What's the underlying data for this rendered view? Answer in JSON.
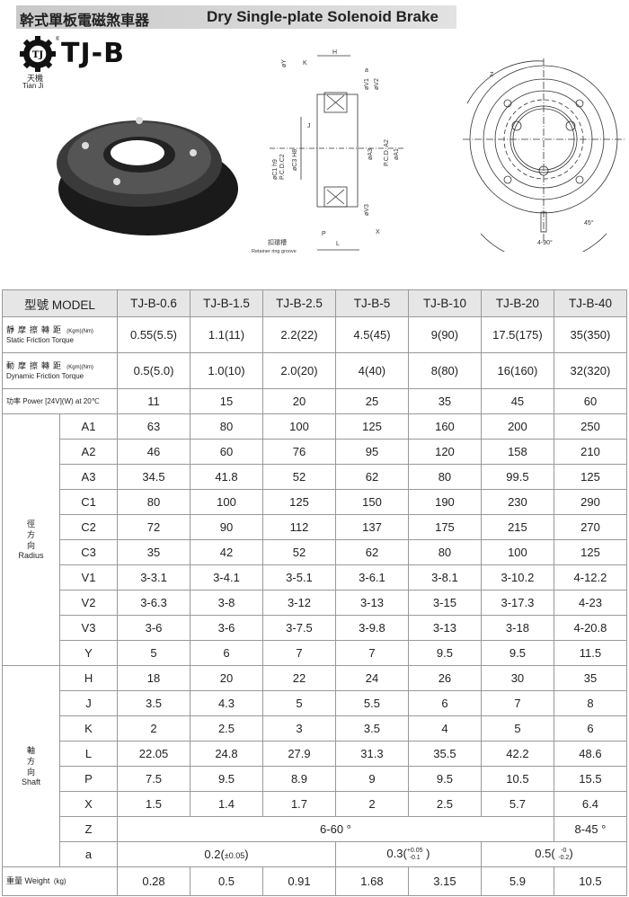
{
  "header": {
    "title_zh": "幹式單板電磁煞車器",
    "title_en": "Dry Single-plate Solenoid Brake"
  },
  "logo": {
    "badge": "TJ",
    "brand": "TJ-B",
    "name_zh": "天機",
    "name_en": "Tian Ji",
    "reg_mark": "®"
  },
  "diagram_side": {
    "labels": [
      "H",
      "K",
      "øY",
      "a",
      "øV1",
      "øV2",
      "øC1 h9",
      "P.C.D.C2",
      "øC3 H8",
      "J",
      "øA3",
      "P.C.D. A2",
      "øA1",
      "øV3",
      "P",
      "X",
      "L"
    ],
    "groove_zh": "扣環槽",
    "groove_en": "Retainer ring groove"
  },
  "diagram_front": {
    "labels": [
      "Z",
      "45°",
      "4-90°"
    ]
  },
  "table": {
    "model_label": "型號 MODEL",
    "models": [
      "TJ-B-0.6",
      "TJ-B-1.5",
      "TJ-B-2.5",
      "TJ-B-5",
      "TJ-B-10",
      "TJ-B-20",
      "TJ-B-40"
    ],
    "static": {
      "zh": "靜摩擦轉距",
      "en": "Static Friction Torque",
      "unit": "(Kgm)(Nm)",
      "values": [
        "0.55(5.5)",
        "1.1(11)",
        "2.2(22)",
        "4.5(45)",
        "9(90)",
        "17.5(175)",
        "35(350)"
      ]
    },
    "dynamic": {
      "zh": "動摩擦轉距",
      "en": "Dynamic Friction Torque",
      "unit": "(Kgm)(Nm)",
      "values": [
        "0.5(5.0)",
        "1.0(10)",
        "2.0(20)",
        "4(40)",
        "8(80)",
        "16(160)",
        "32(320)"
      ]
    },
    "power": {
      "label": "功率 Power [24V](W) at 20℃",
      "values": [
        "11",
        "15",
        "20",
        "25",
        "35",
        "45",
        "60"
      ]
    },
    "radius": {
      "zh": "徑方向",
      "en": "Radius",
      "rows": [
        {
          "name": "A1",
          "values": [
            "63",
            "80",
            "100",
            "125",
            "160",
            "200",
            "250"
          ]
        },
        {
          "name": "A2",
          "values": [
            "46",
            "60",
            "76",
            "95",
            "120",
            "158",
            "210"
          ]
        },
        {
          "name": "A3",
          "values": [
            "34.5",
            "41.8",
            "52",
            "62",
            "80",
            "99.5",
            "125"
          ]
        },
        {
          "name": "C1",
          "values": [
            "80",
            "100",
            "125",
            "150",
            "190",
            "230",
            "290"
          ]
        },
        {
          "name": "C2",
          "values": [
            "72",
            "90",
            "112",
            "137",
            "175",
            "215",
            "270"
          ]
        },
        {
          "name": "C3",
          "values": [
            "35",
            "42",
            "52",
            "62",
            "80",
            "100",
            "125"
          ]
        },
        {
          "name": "V1",
          "values": [
            "3-3.1",
            "3-4.1",
            "3-5.1",
            "3-6.1",
            "3-8.1",
            "3-10.2",
            "4-12.2"
          ]
        },
        {
          "name": "V2",
          "values": [
            "3-6.3",
            "3-8",
            "3-12",
            "3-13",
            "3-15",
            "3-17.3",
            "4-23"
          ]
        },
        {
          "name": "V3",
          "values": [
            "3-6",
            "3-6",
            "3-7.5",
            "3-9.8",
            "3-13",
            "3-18",
            "4-20.8"
          ]
        },
        {
          "name": "Y",
          "values": [
            "5",
            "6",
            "7",
            "7",
            "9.5",
            "9.5",
            "11.5"
          ]
        }
      ]
    },
    "shaft": {
      "zh": "軸方向",
      "en": "Shaft",
      "rows": [
        {
          "name": "H",
          "values": [
            "18",
            "20",
            "22",
            "24",
            "26",
            "30",
            "35"
          ]
        },
        {
          "name": "J",
          "values": [
            "3.5",
            "4.3",
            "5",
            "5.5",
            "6",
            "7",
            "8"
          ]
        },
        {
          "name": "K",
          "values": [
            "2",
            "2.5",
            "3",
            "3.5",
            "4",
            "5",
            "6"
          ]
        },
        {
          "name": "L",
          "values": [
            "22.05",
            "24.8",
            "27.9",
            "31.3",
            "35.5",
            "42.2",
            "48.6"
          ]
        },
        {
          "name": "P",
          "values": [
            "7.5",
            "9.5",
            "8.9",
            "9",
            "9.5",
            "10.5",
            "15.5"
          ]
        },
        {
          "name": "X",
          "values": [
            "1.5",
            "1.4",
            "1.7",
            "2",
            "2.5",
            "5.7",
            "6.4"
          ]
        }
      ],
      "z": {
        "name": "Z",
        "span_a": "6-60 °",
        "span_b": "8-45 °"
      },
      "a": {
        "name": "a",
        "v1": "0.2(",
        "v1_tol": "±0.05",
        "v1_end": ")",
        "v2": "0.3(",
        "v2_up": "+0.05",
        "v2_low": "-0.1",
        "v2_end": " )",
        "v3": "0.5(",
        "v3_up": "-0",
        "v3_low": "-0.2",
        "v3_end": ")"
      }
    },
    "weight": {
      "label": "重量 Weight",
      "unit": "(kg)",
      "values": [
        "0.28",
        "0.5",
        "0.91",
        "1.68",
        "3.15",
        "5.9",
        "10.5"
      ]
    }
  }
}
